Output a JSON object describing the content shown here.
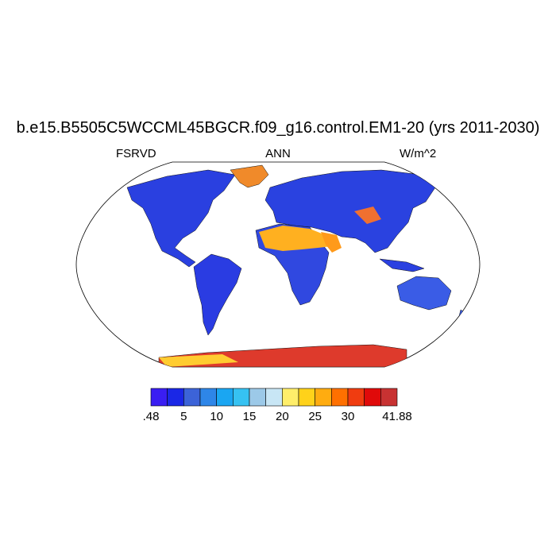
{
  "title": "b.e15.B5505C5WCCML45BGCR.f09_g16.control.EM1-20 (yrs 2011-2030)",
  "left_label": "FSRVD",
  "center_label": "ANN",
  "right_label": "W/m^2",
  "projection": "Robinson",
  "colorbar": {
    "colors": [
      "#3a1ef2",
      "#1a27e6",
      "#3c63d8",
      "#2e86e8",
      "#1aa6f2",
      "#36c2f2",
      "#9cc9e8",
      "#c8e6f5",
      "#ffee6a",
      "#ffd21a",
      "#ffac10",
      "#ff7000",
      "#f03c10",
      "#e00a0a",
      "#c83232"
    ],
    "tick_labels": [
      ".48",
      "5",
      "10",
      "15",
      "20",
      "25",
      "30",
      "41.88"
    ]
  },
  "colors": {
    "ocean": "#ffffff",
    "coastline": "#000000"
  }
}
